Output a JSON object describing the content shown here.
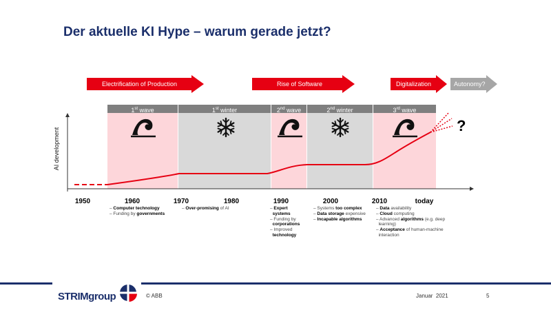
{
  "title": "Der aktuelle KI Hype – warum gerade jetzt?",
  "arrows": [
    {
      "label": "Electrification of Production",
      "color": "#e60012"
    },
    {
      "label": "Rise of Software",
      "color": "#e60012"
    },
    {
      "label": "Digitalization",
      "color": "#e60012"
    },
    {
      "label": "Autonomy?",
      "color": "#a6a6a6"
    }
  ],
  "bands": [
    {
      "num": "1",
      "sup": "st",
      "word": "wave"
    },
    {
      "num": "1",
      "sup": "st",
      "word": "winter"
    },
    {
      "num": "2",
      "sup": "nd",
      "word": "wave"
    },
    {
      "num": "2",
      "sup": "nd",
      "word": "winter"
    },
    {
      "num": "3",
      "sup": "rd",
      "word": "wave"
    }
  ],
  "icons": {
    "wave": "wave-icon",
    "winter": "snowflake-icon"
  },
  "y_axis_label": "AI development",
  "question_mark": "?",
  "years": [
    "1950",
    "1960",
    "1970",
    "1980",
    "1990",
    "2000",
    "2010",
    "today"
  ],
  "colors": {
    "wave_bg": "#fdd6da",
    "winter_bg": "#d9d9d9",
    "band_head": "#7f7f7f",
    "line": "#e60012",
    "title": "#1b2f6b",
    "footer_bar": "#1b2f6b"
  },
  "notes": {
    "n1960": [
      [
        {
          "t": "– "
        },
        {
          "t": "Computer technology",
          "b": true
        }
      ],
      [
        {
          "t": "– Funding by "
        },
        {
          "t": "governments",
          "b": true
        }
      ]
    ],
    "n1970": [
      [
        {
          "t": "– "
        },
        {
          "t": "Over-promising",
          "b": true
        },
        {
          "t": " of AI"
        }
      ]
    ],
    "n1990": [
      [
        {
          "t": "– "
        },
        {
          "t": "Expert",
          "b": true
        }
      ],
      [
        {
          "t": "  "
        },
        {
          "t": "systems",
          "b": true
        }
      ],
      [
        {
          "t": "– Funding by"
        }
      ],
      [
        {
          "t": "  "
        },
        {
          "t": "corporations",
          "b": true
        }
      ],
      [
        {
          "t": "– Improved"
        }
      ],
      [
        {
          "t": "  "
        },
        {
          "t": "technology",
          "b": true
        }
      ]
    ],
    "n2000": [
      [
        {
          "t": "– Systems "
        },
        {
          "t": "too complex",
          "b": true
        }
      ],
      [
        {
          "t": "– "
        },
        {
          "t": "Data storage",
          "b": true
        },
        {
          "t": " expensive"
        }
      ],
      [
        {
          "t": "– "
        },
        {
          "t": "Incapable algorithms",
          "b": true
        }
      ]
    ],
    "n2010": [
      [
        {
          "t": "– "
        },
        {
          "t": "Data",
          "b": true
        },
        {
          "t": " availability"
        }
      ],
      [
        {
          "t": "– "
        },
        {
          "t": "Cloud",
          "b": true
        },
        {
          "t": " computing"
        }
      ],
      [
        {
          "t": "– Advanced "
        },
        {
          "t": "algorithms",
          "b": true
        },
        {
          "t": " (e.g. deep"
        }
      ],
      [
        {
          "t": "  learning)"
        }
      ],
      [
        {
          "t": "– "
        },
        {
          "t": "Acceptance",
          "b": true
        },
        {
          "t": " of human-machine"
        }
      ],
      [
        {
          "t": "  interaction"
        }
      ]
    ]
  },
  "footer": {
    "logo_text": "STRIMgroup",
    "copyright": "© ABB",
    "date": "Januar  2021",
    "page": "5"
  }
}
